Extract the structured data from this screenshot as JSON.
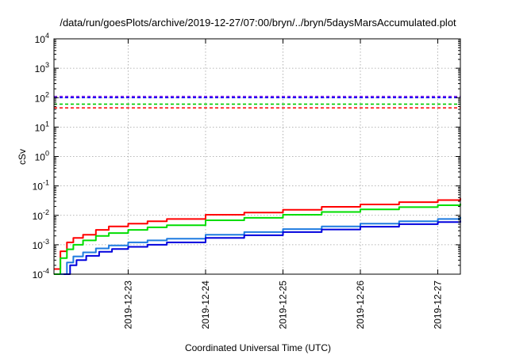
{
  "chart_data": {
    "type": "line",
    "title": "/data/run/goesPlots/archive/2019-12-27/07:00/bryn/../bryn/5daysMarsAccumulated.plot",
    "xlabel": "Coordinated Universal Time (UTC)",
    "ylabel": "cSv",
    "yscale": "log",
    "ylim": [
      0.0001,
      10000
    ],
    "xlim": [
      "2019-12-22 01:00",
      "2019-12-27 07:00"
    ],
    "grid": true,
    "x_ticks": [
      "2019-12-23",
      "2019-12-24",
      "2019-12-25",
      "2019-12-26",
      "2019-12-27"
    ],
    "y_ticks": [
      {
        "value": 0.0001,
        "base": "10",
        "exp": "-4"
      },
      {
        "value": 0.001,
        "base": "10",
        "exp": "-3"
      },
      {
        "value": 0.01,
        "base": "10",
        "exp": "-2"
      },
      {
        "value": 0.1,
        "base": "10",
        "exp": "-1"
      },
      {
        "value": 1,
        "base": "10",
        "exp": "0"
      },
      {
        "value": 10,
        "base": "10",
        "exp": "1"
      },
      {
        "value": 100,
        "base": "10",
        "exp": "2"
      },
      {
        "value": 1000,
        "base": "10",
        "exp": "3"
      },
      {
        "value": 10000,
        "base": "10",
        "exp": "4"
      }
    ],
    "reference_lines": [
      {
        "value": 110,
        "color": "#8a2be2"
      },
      {
        "value": 100,
        "color": "#0000ff"
      },
      {
        "value": 60,
        "color": "#00cc00"
      },
      {
        "value": 45,
        "color": "#ff0000"
      }
    ],
    "series": [
      {
        "color": "#ff0000",
        "x": [
          "2019-12-22 01:00",
          "2019-12-22 03:00",
          "2019-12-22 05:00",
          "2019-12-22 07:00",
          "2019-12-22 10:00",
          "2019-12-22 14:00",
          "2019-12-22 18:00",
          "2019-12-23 00:00",
          "2019-12-23 06:00",
          "2019-12-23 12:00",
          "2019-12-24 00:00",
          "2019-12-24 12:00",
          "2019-12-25 00:00",
          "2019-12-25 12:00",
          "2019-12-26 00:00",
          "2019-12-26 12:00",
          "2019-12-27 00:00",
          "2019-12-27 07:00"
        ],
        "y": [
          0.00015,
          0.0006,
          0.0012,
          0.0017,
          0.0022,
          0.0032,
          0.0042,
          0.0052,
          0.0063,
          0.0075,
          0.0105,
          0.0125,
          0.0155,
          0.0195,
          0.0235,
          0.028,
          0.033,
          0.038
        ]
      },
      {
        "color": "#00dd00",
        "x": [
          "2019-12-22 01:00",
          "2019-12-22 03:00",
          "2019-12-22 05:00",
          "2019-12-22 07:00",
          "2019-12-22 10:00",
          "2019-12-22 14:00",
          "2019-12-22 18:00",
          "2019-12-23 00:00",
          "2019-12-23 06:00",
          "2019-12-23 12:00",
          "2019-12-24 00:00",
          "2019-12-24 12:00",
          "2019-12-25 00:00",
          "2019-12-25 12:00",
          "2019-12-26 00:00",
          "2019-12-26 12:00",
          "2019-12-27 00:00",
          "2019-12-27 07:00"
        ],
        "y": [
          0.0001,
          0.00035,
          0.0007,
          0.001,
          0.0014,
          0.002,
          0.0025,
          0.0032,
          0.0039,
          0.0046,
          0.0068,
          0.0082,
          0.0105,
          0.013,
          0.016,
          0.019,
          0.022,
          0.025
        ]
      },
      {
        "color": "#1e7be0",
        "x": [
          "2019-12-22 03:00",
          "2019-12-22 05:00",
          "2019-12-22 07:00",
          "2019-12-22 10:00",
          "2019-12-22 14:00",
          "2019-12-22 18:00",
          "2019-12-23 00:00",
          "2019-12-23 06:00",
          "2019-12-23 12:00",
          "2019-12-24 00:00",
          "2019-12-24 12:00",
          "2019-12-25 00:00",
          "2019-12-25 12:00",
          "2019-12-26 00:00",
          "2019-12-26 12:00",
          "2019-12-27 00:00",
          "2019-12-27 07:00"
        ],
        "y": [
          0.0001,
          0.00025,
          0.0004,
          0.00055,
          0.00075,
          0.00095,
          0.0012,
          0.0014,
          0.0016,
          0.0022,
          0.0027,
          0.0034,
          0.0042,
          0.0052,
          0.0063,
          0.0075,
          0.0088
        ]
      },
      {
        "color": "#0000dd",
        "x": [
          "2019-12-22 04:00",
          "2019-12-22 06:00",
          "2019-12-22 08:00",
          "2019-12-22 11:00",
          "2019-12-22 15:00",
          "2019-12-22 19:00",
          "2019-12-23 00:00",
          "2019-12-23 06:00",
          "2019-12-23 12:00",
          "2019-12-24 00:00",
          "2019-12-24 12:00",
          "2019-12-25 00:00",
          "2019-12-25 12:00",
          "2019-12-26 00:00",
          "2019-12-26 12:00",
          "2019-12-27 00:00",
          "2019-12-27 07:00"
        ],
        "y": [
          0.0001,
          0.0002,
          0.0003,
          0.00042,
          0.00058,
          0.00072,
          0.00085,
          0.001,
          0.0012,
          0.0017,
          0.0021,
          0.0027,
          0.0033,
          0.0041,
          0.005,
          0.0059,
          0.0066
        ]
      }
    ]
  }
}
